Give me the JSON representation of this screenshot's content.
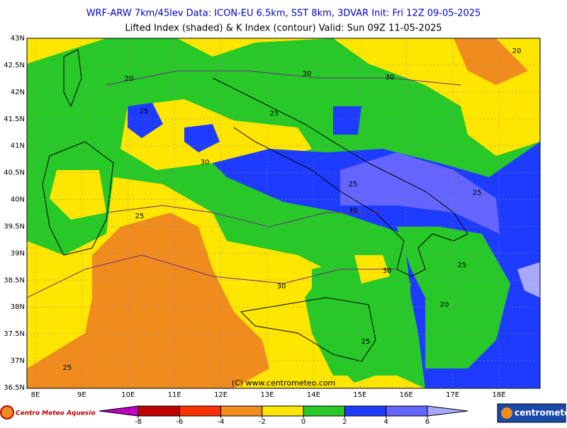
{
  "header": {
    "line1": "WRF-ARW 7km/45lev   Data: ICON-EU 6.5km, SST 8km, 3DVAR   Init: Fri 12Z 09-05-2025",
    "line2": "Lifted Index (shaded) & K Index (contour)   Valid: Sun 09Z 11-05-2025"
  },
  "map": {
    "lat_labels": [
      "43N",
      "42.5N",
      "42N",
      "41.5N",
      "41N",
      "40.5N",
      "40N",
      "39.5N",
      "39N",
      "38.5N",
      "38N",
      "37.5N",
      "37N",
      "36.5N"
    ],
    "lon_labels": [
      "8E",
      "9E",
      "10E",
      "11E",
      "12E",
      "13E",
      "14E",
      "15E",
      "16E",
      "17E",
      "18E"
    ],
    "contour_labels": [
      "20",
      "25",
      "30",
      "30",
      "25",
      "30",
      "25",
      "30",
      "25",
      "25",
      "30",
      "25",
      "30",
      "20",
      "25",
      "25",
      "20"
    ],
    "credit": "(C) www.centrometeo.com"
  },
  "colorbar": {
    "ticks": [
      -8,
      -6,
      -4,
      -2,
      0,
      2,
      4,
      6
    ],
    "colors": [
      "#c000c0",
      "#c00000",
      "#ff3000",
      "#f08c1e",
      "#ffe600",
      "#28c828",
      "#1e3cff",
      "#6464ff",
      "#a8a8ff"
    ]
  },
  "footer": {
    "logo_left": "Centro Meteo Aquesio",
    "logo_right": "centrometeo"
  }
}
